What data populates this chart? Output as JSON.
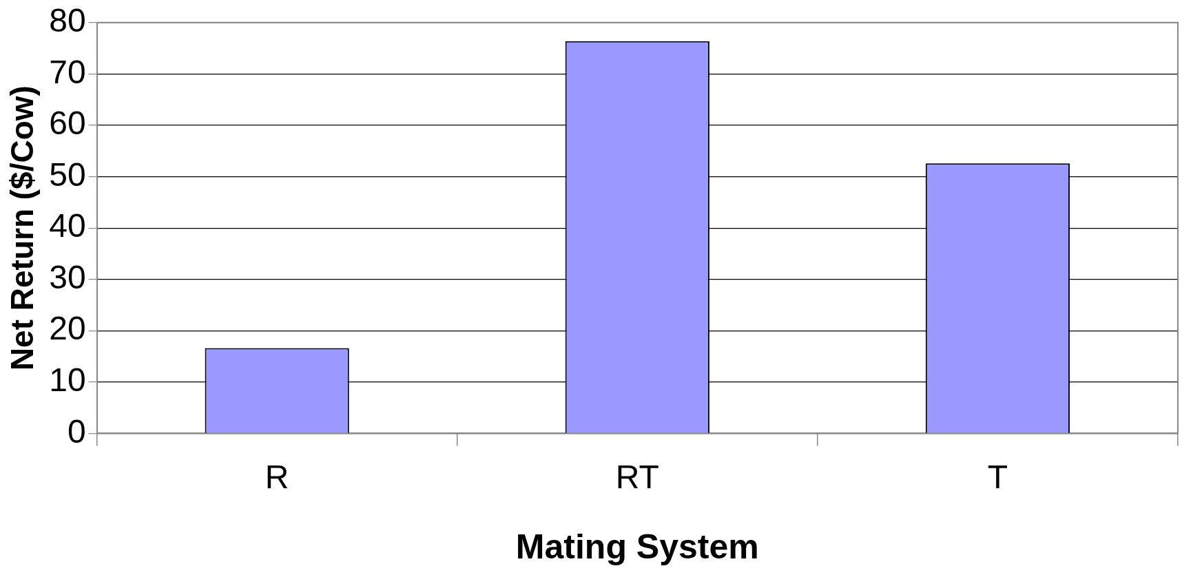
{
  "chart_data": {
    "type": "bar",
    "xlabel": "Mating System",
    "ylabel": "Net Return ($/Cow)",
    "categories": [
      "R",
      "RT",
      "T"
    ],
    "values": [
      16.6,
      76.4,
      52.6
    ],
    "color": "#9999ff",
    "ylim": [
      0,
      80
    ],
    "yticks": [
      0,
      10,
      20,
      30,
      40,
      50,
      60,
      70,
      80
    ],
    "grid": "y",
    "legend": false
  }
}
